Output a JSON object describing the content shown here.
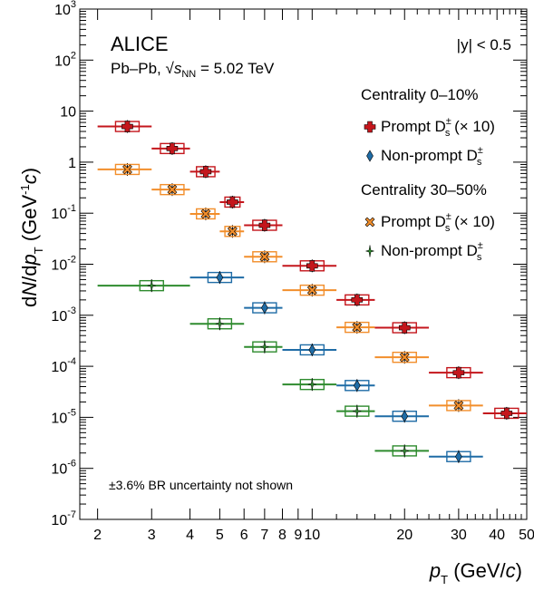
{
  "chart_data": {
    "type": "scatter",
    "title": "ALICE",
    "subtitle": "Pb–Pb, √s_NN = 5.02 TeV",
    "rapidity": "|y| < 0.5",
    "note": "±3.6% BR uncertainty not shown",
    "xlabel": "p_T (GeV/c)",
    "ylabel": "dN/dp_T (GeV^-1 c)",
    "xscale": "log",
    "yscale": "log",
    "xlim": [
      1.75,
      50
    ],
    "ylim": [
      1e-07,
      1000
    ],
    "xticks": [
      "2",
      "3",
      "4",
      "5",
      "6",
      "7",
      "8",
      "9",
      "10",
      "20",
      "30",
      "40",
      "50"
    ],
    "yticks": [
      "10^-7",
      "10^-6",
      "10^-5",
      "10^-4",
      "10^-3",
      "10^-2",
      "10^-1",
      "1",
      "10",
      "10^2",
      "10^3"
    ],
    "legend": {
      "placement": "top-right",
      "group1": "Centrality 0–10%",
      "group2": "Centrality 30–50%"
    },
    "series": [
      {
        "name": "Prompt Ds± (× 10)",
        "centrality": "0–10%",
        "label_main": "Prompt D",
        "label_suffix": "(× 10)",
        "color": "#c4161c",
        "marker": "cross",
        "points": [
          {
            "x": 2.5,
            "xlo": 2,
            "xhi": 3,
            "y": 5.0
          },
          {
            "x": 3.5,
            "xlo": 3,
            "xhi": 4,
            "y": 1.85
          },
          {
            "x": 4.5,
            "xlo": 4,
            "xhi": 5,
            "y": 0.65
          },
          {
            "x": 5.5,
            "xlo": 5,
            "xhi": 6,
            "y": 0.165
          },
          {
            "x": 7.0,
            "xlo": 6,
            "xhi": 8,
            "y": 0.058
          },
          {
            "x": 10.0,
            "xlo": 8,
            "xhi": 12,
            "y": 0.0093
          },
          {
            "x": 14.0,
            "xlo": 12,
            "xhi": 16,
            "y": 0.002
          },
          {
            "x": 20.0,
            "xlo": 16,
            "xhi": 24,
            "y": 0.00057
          },
          {
            "x": 30.0,
            "xlo": 24,
            "xhi": 36,
            "y": 7.5e-05
          },
          {
            "x": 43.0,
            "xlo": 36,
            "xhi": 50,
            "y": 1.2e-05
          }
        ]
      },
      {
        "name": "Non-prompt Ds±",
        "centrality": "0–10%",
        "label_main": "Non-prompt D",
        "label_suffix": "",
        "color": "#1f6ca6",
        "marker": "diamond",
        "points": [
          {
            "x": 5.0,
            "xlo": 4,
            "xhi": 6,
            "y": 0.0055
          },
          {
            "x": 7.0,
            "xlo": 6,
            "xhi": 8,
            "y": 0.0014
          },
          {
            "x": 10.0,
            "xlo": 8,
            "xhi": 12,
            "y": 0.00021
          },
          {
            "x": 14.0,
            "xlo": 12,
            "xhi": 16,
            "y": 4.2e-05
          },
          {
            "x": 20.0,
            "xlo": 16,
            "xhi": 24,
            "y": 1.05e-05
          },
          {
            "x": 30.0,
            "xlo": 24,
            "xhi": 36,
            "y": 1.7e-06
          }
        ]
      },
      {
        "name": "Prompt Ds± (× 10)",
        "centrality": "30–50%",
        "label_main": "Prompt D",
        "label_suffix": "(× 10)",
        "color": "#f28e2b",
        "marker": "x",
        "points": [
          {
            "x": 2.5,
            "xlo": 2,
            "xhi": 3,
            "y": 0.72
          },
          {
            "x": 3.5,
            "xlo": 3,
            "xhi": 4,
            "y": 0.29
          },
          {
            "x": 4.5,
            "xlo": 4,
            "xhi": 5,
            "y": 0.097
          },
          {
            "x": 5.5,
            "xlo": 5,
            "xhi": 6,
            "y": 0.044
          },
          {
            "x": 7.0,
            "xlo": 6,
            "xhi": 8,
            "y": 0.014
          },
          {
            "x": 10.0,
            "xlo": 8,
            "xhi": 12,
            "y": 0.0031
          },
          {
            "x": 14.0,
            "xlo": 12,
            "xhi": 16,
            "y": 0.00058
          },
          {
            "x": 20.0,
            "xlo": 16,
            "xhi": 24,
            "y": 0.00015
          },
          {
            "x": 30.0,
            "xlo": 24,
            "xhi": 36,
            "y": 1.7e-05
          }
        ]
      },
      {
        "name": "Non-prompt Ds±",
        "centrality": "30–50%",
        "label_main": "Non-prompt D",
        "label_suffix": "",
        "color": "#2e8b2e",
        "marker": "star",
        "points": [
          {
            "x": 3.0,
            "xlo": 2,
            "xhi": 4,
            "y": 0.0038
          },
          {
            "x": 5.0,
            "xlo": 4,
            "xhi": 6,
            "y": 0.00068
          },
          {
            "x": 7.0,
            "xlo": 6,
            "xhi": 8,
            "y": 0.00024
          },
          {
            "x": 10.0,
            "xlo": 8,
            "xhi": 12,
            "y": 4.4e-05
          },
          {
            "x": 14.0,
            "xlo": 12,
            "xhi": 16,
            "y": 1.32e-05
          },
          {
            "x": 20.0,
            "xlo": 16,
            "xhi": 24,
            "y": 2.2e-06
          }
        ]
      }
    ]
  }
}
